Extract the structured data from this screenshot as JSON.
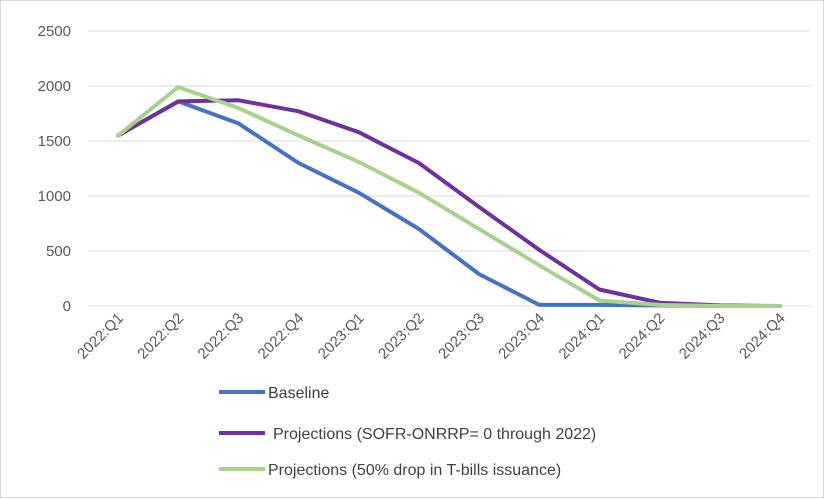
{
  "chart_data": {
    "type": "line",
    "title": "",
    "xlabel": "",
    "ylabel": "",
    "ylim": [
      0,
      2500
    ],
    "yticks": [
      0,
      500,
      1000,
      1500,
      2000,
      2500
    ],
    "grid": true,
    "legend_position": "bottom",
    "categories": [
      "2022:Q1",
      "2022:Q2",
      "2022:Q3",
      "2022:Q4",
      "2023:Q1",
      "2023:Q2",
      "2023:Q3",
      "2023:Q4",
      "2024:Q1",
      "2024:Q2",
      "2024:Q3",
      "2024:Q4"
    ],
    "series": [
      {
        "name": "Baseline",
        "color": "#4472c4",
        "values": [
          1550,
          1860,
          1660,
          1300,
          1030,
          700,
          290,
          10,
          10,
          5,
          0,
          0
        ]
      },
      {
        "name": "Projections (SOFR-ONRRP= 0 through 2022)",
        "color": "#7030a0",
        "values": [
          1550,
          1860,
          1870,
          1770,
          1580,
          1300,
          900,
          510,
          150,
          30,
          5,
          0
        ]
      },
      {
        "name": "Projections (50% drop in T-bills issuance)",
        "color": "#a9d18e",
        "values": [
          1550,
          1990,
          1800,
          1550,
          1310,
          1030,
          700,
          370,
          50,
          10,
          0,
          0
        ]
      }
    ]
  }
}
